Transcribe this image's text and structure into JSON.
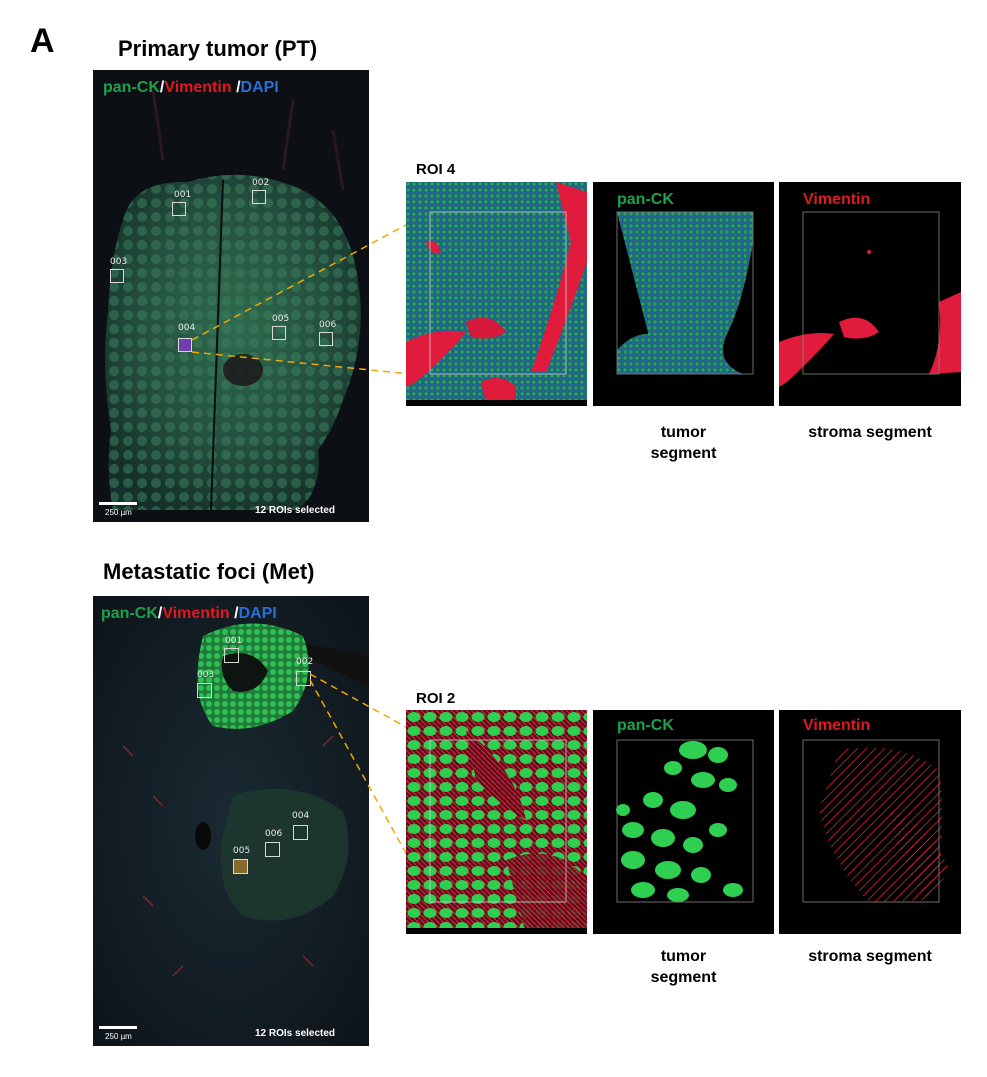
{
  "panel_label": "A",
  "primary": {
    "title": "Primary tumor (PT)",
    "stain": {
      "pan_ck": "pan-CK",
      "slash1": "/",
      "vimentin": "Vimentin",
      "slash2": " /",
      "dapi": "DAPI"
    },
    "rois": [
      "001",
      "002",
      "003",
      "004",
      "005",
      "006"
    ],
    "scale_label": "250 µm",
    "roi_count": "12 ROIs selected",
    "zoom_title": "ROI 4",
    "zoom_tags": {
      "pan_ck": "pan-CK",
      "vimentin": "Vimentin"
    },
    "captions": {
      "tumor": "tumor segment",
      "stroma": "stroma segment"
    }
  },
  "metastatic": {
    "title": "Metastatic foci (Met)",
    "stain": {
      "pan_ck": "pan-CK",
      "slash1": "/",
      "vimentin": "Vimentin",
      "slash2": " /",
      "dapi": "DAPI"
    },
    "rois": [
      "001",
      "002",
      "003",
      "004",
      "005",
      "006"
    ],
    "scale_label": "250 µm",
    "roi_count": "12 ROIs selected",
    "zoom_title": "ROI 2",
    "zoom_tags": {
      "pan_ck": "pan-CK",
      "vimentin": "Vimentin"
    },
    "captions": {
      "tumor": "tumor segment",
      "stroma": "stroma segment"
    }
  },
  "colors": {
    "pan_ck": "#1aa34a",
    "vimentin": "#e0191f",
    "dapi": "#2a6fd6",
    "guide_line": "#f0a800"
  }
}
